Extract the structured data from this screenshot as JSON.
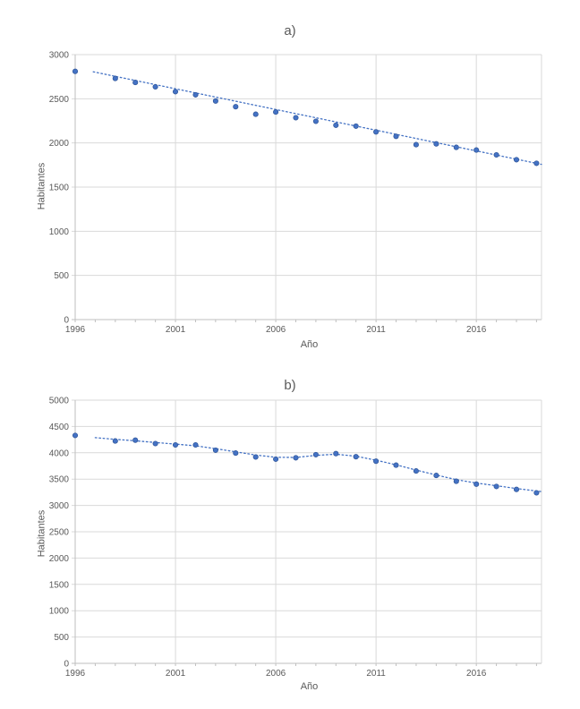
{
  "page": {
    "background": "#ffffff",
    "text_color": "#595959",
    "gridline_color": "#d9d9d9",
    "axis_color": "#bfbfbf",
    "point_color": "#4472c4",
    "point_border_color": "#2f5597",
    "trend_color": "#4472c4"
  },
  "chart_data": [
    {
      "id": "a",
      "type": "scatter",
      "title": "a)",
      "xlabel": "Año",
      "ylabel": "Habitantes",
      "legend": "none",
      "grid": true,
      "xlim": [
        1996,
        2019.25
      ],
      "ylim": [
        0,
        3000
      ],
      "x_ticks": [
        1996,
        2001,
        2006,
        2011,
        2016
      ],
      "y_ticks": [
        0,
        500,
        1000,
        1500,
        2000,
        2500,
        3000
      ],
      "x": [
        1996,
        1998,
        1999,
        2000,
        2001,
        2002,
        2003,
        2004,
        2005,
        2006,
        2007,
        2008,
        2009,
        2010,
        2011,
        2012,
        2013,
        2014,
        2015,
        2016,
        2017,
        2018,
        2019
      ],
      "values": [
        2810,
        2730,
        2685,
        2635,
        2580,
        2545,
        2475,
        2410,
        2325,
        2350,
        2285,
        2245,
        2200,
        2190,
        2125,
        2075,
        1980,
        1990,
        1950,
        1920,
        1865,
        1810,
        1770
      ],
      "trendline": {
        "style": "dotted",
        "shape": "linear",
        "x": [
          1996.9,
          2019.25
        ],
        "values": [
          2805,
          1757
        ]
      }
    },
    {
      "id": "b",
      "type": "scatter",
      "title": "b)",
      "xlabel": "Año",
      "ylabel": "Habitantes",
      "legend": "none",
      "grid": true,
      "xlim": [
        1996,
        2019.25
      ],
      "ylim": [
        0,
        5000
      ],
      "x_ticks": [
        1996,
        2001,
        2006,
        2011,
        2016
      ],
      "y_ticks": [
        0,
        500,
        1000,
        1500,
        2000,
        2500,
        3000,
        3500,
        4000,
        4500,
        5000
      ],
      "x": [
        1996,
        1998,
        1999,
        2000,
        2001,
        2002,
        2003,
        2004,
        2005,
        2006,
        2007,
        2008,
        2009,
        2010,
        2011,
        2012,
        2013,
        2014,
        2015,
        2016,
        2017,
        2018,
        2019
      ],
      "values": [
        4330,
        4225,
        4240,
        4175,
        4150,
        4150,
        4050,
        3995,
        3920,
        3880,
        3905,
        3965,
        3985,
        3925,
        3840,
        3765,
        3655,
        3570,
        3460,
        3405,
        3360,
        3305,
        3240
      ],
      "trendline": {
        "style": "dotted",
        "shape": "smooth",
        "x": [
          1997,
          1998,
          1999,
          2000,
          2001,
          2002,
          2003,
          2004,
          2005,
          2006,
          2007,
          2008,
          2009,
          2010,
          2011,
          2012,
          2013,
          2014,
          2015,
          2016,
          2017,
          2018,
          2019.25
        ],
        "values": [
          4288,
          4255,
          4228,
          4195,
          4165,
          4132,
          4078,
          4018,
          3958,
          3915,
          3912,
          3950,
          3972,
          3935,
          3858,
          3772,
          3672,
          3578,
          3490,
          3425,
          3375,
          3322,
          3262
        ]
      }
    }
  ]
}
